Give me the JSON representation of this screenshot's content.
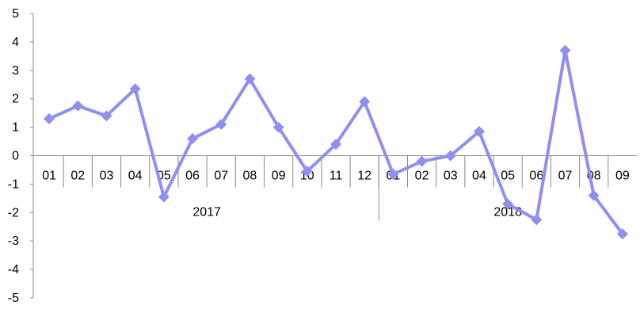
{
  "chart_data": {
    "type": "line",
    "title": "",
    "xlabel": "",
    "ylabel": "",
    "ylim": [
      -5,
      5
    ],
    "yticks": [
      "5",
      "4",
      "3",
      "2",
      "1",
      "0",
      "-1",
      "-2",
      "-3",
      "-4",
      "-5"
    ],
    "grid": false,
    "legend": "none",
    "color": "#8f8ff0",
    "groups": [
      {
        "label": "2017",
        "count": 12
      },
      {
        "label": "2018",
        "count": 9
      }
    ],
    "categories": [
      "01",
      "02",
      "03",
      "04",
      "05",
      "06",
      "07",
      "08",
      "09",
      "10",
      "11",
      "12",
      "01",
      "02",
      "03",
      "04",
      "05",
      "06",
      "07",
      "08",
      "09"
    ],
    "values": [
      1.3,
      1.75,
      1.4,
      2.35,
      -1.45,
      0.6,
      1.1,
      2.7,
      1.0,
      -0.55,
      0.4,
      1.9,
      -0.65,
      -0.2,
      0.0,
      0.85,
      -1.7,
      -2.25,
      3.7,
      -1.4,
      -2.75
    ]
  }
}
